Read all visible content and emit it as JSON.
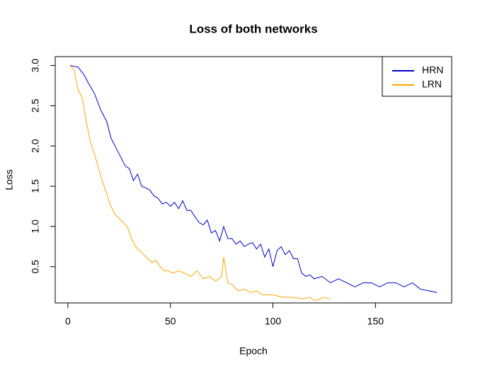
{
  "chart_data": {
    "type": "line",
    "title": "Loss of both networks",
    "x_label": "Epoch",
    "y_label": "Loss",
    "xlim": [
      -6.16,
      187.16
    ],
    "ylim": [
      0.05,
      3.11
    ],
    "xticks": [
      0,
      50,
      100,
      150
    ],
    "yticks": [
      0.5,
      {
        "value": 1.0,
        "label": "1.0"
      },
      1.5,
      {
        "value": 2.0,
        "label": "2.0"
      },
      2.5,
      {
        "value": 3.0,
        "label": "3.0"
      }
    ],
    "legend": "top-right",
    "series": [
      {
        "name": "HRN",
        "color": "#0000cd",
        "x": [
          1,
          5,
          8,
          10,
          13,
          16,
          19,
          21,
          23,
          26,
          28,
          30,
          32,
          34,
          36,
          38,
          40,
          42,
          44,
          46,
          48,
          50,
          52,
          54,
          56,
          58,
          60,
          62,
          64,
          66,
          68,
          70,
          72,
          74,
          76,
          78,
          80,
          82,
          84,
          86,
          88,
          90,
          92,
          94,
          96,
          98,
          100,
          102,
          104,
          106,
          108,
          110,
          112,
          114,
          116,
          118,
          120,
          124,
          128,
          132,
          136,
          140,
          144,
          148,
          152,
          156,
          160,
          164,
          168,
          172,
          176,
          180
        ],
        "values": [
          3.0,
          2.98,
          2.88,
          2.78,
          2.65,
          2.45,
          2.3,
          2.1,
          2.0,
          1.85,
          1.75,
          1.72,
          1.57,
          1.65,
          1.5,
          1.48,
          1.45,
          1.38,
          1.35,
          1.28,
          1.3,
          1.25,
          1.3,
          1.22,
          1.32,
          1.2,
          1.2,
          1.12,
          1.05,
          1.02,
          1.08,
          0.92,
          0.95,
          0.82,
          1.0,
          0.85,
          0.85,
          0.78,
          0.82,
          0.75,
          0.78,
          0.8,
          0.72,
          0.78,
          0.62,
          0.72,
          0.5,
          0.7,
          0.75,
          0.65,
          0.7,
          0.6,
          0.6,
          0.42,
          0.38,
          0.4,
          0.35,
          0.38,
          0.3,
          0.35,
          0.3,
          0.25,
          0.3,
          0.3,
          0.25,
          0.3,
          0.3,
          0.25,
          0.3,
          0.22,
          0.2,
          0.18
        ]
      },
      {
        "name": "LRN",
        "color": "#ffa500",
        "x": [
          1,
          3,
          5,
          7,
          9,
          11,
          13,
          15,
          17,
          19,
          21,
          23,
          25,
          27,
          29,
          31,
          33,
          35,
          37,
          39,
          41,
          43,
          45,
          47,
          49,
          51,
          54,
          57,
          60,
          63,
          66,
          69,
          72,
          75,
          76,
          78,
          80,
          83,
          86,
          89,
          92,
          95,
          100,
          105,
          110,
          115,
          118,
          120,
          123,
          125,
          128
        ],
        "values": [
          3.0,
          2.95,
          2.7,
          2.6,
          2.3,
          2.05,
          1.9,
          1.72,
          1.55,
          1.4,
          1.25,
          1.15,
          1.1,
          1.05,
          1.0,
          0.85,
          0.75,
          0.7,
          0.65,
          0.6,
          0.55,
          0.58,
          0.5,
          0.45,
          0.45,
          0.42,
          0.45,
          0.42,
          0.38,
          0.45,
          0.35,
          0.38,
          0.32,
          0.38,
          0.62,
          0.3,
          0.28,
          0.2,
          0.22,
          0.18,
          0.2,
          0.15,
          0.15,
          0.12,
          0.12,
          0.1,
          0.12,
          0.08,
          0.1,
          0.12,
          0.1
        ]
      }
    ]
  }
}
